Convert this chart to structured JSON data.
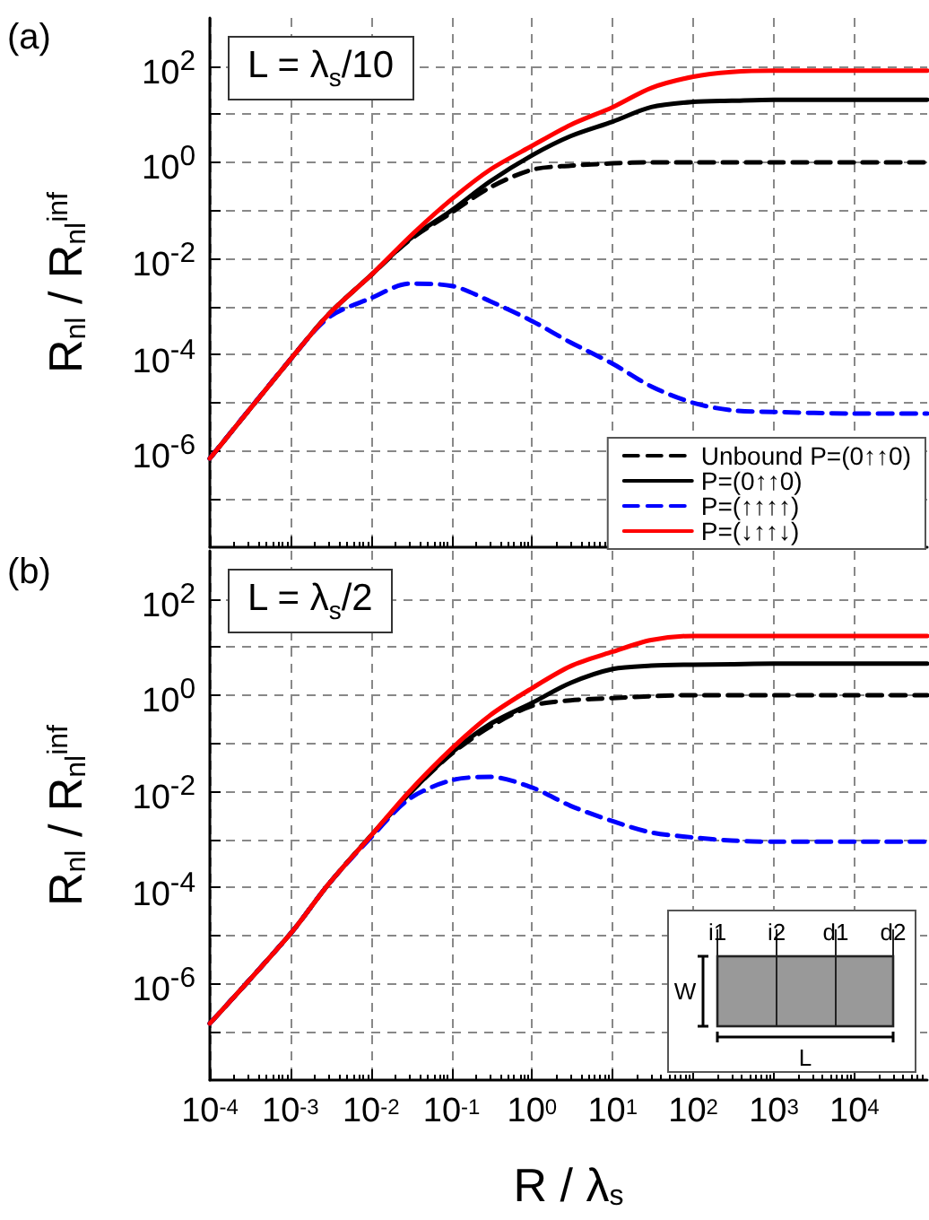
{
  "chart_data": [
    {
      "type": "line",
      "ylabel": "R$_{nl}$ / R$_{nl}$$^{inf}$",
      "annotations": [
        "(a)",
        "L = λ$_{s}$/10"
      ],
      "x": [
        0.0001,
        0.001,
        0.003,
        0.01,
        0.03,
        0.1,
        0.3,
        1,
        3,
        10,
        30,
        100,
        300,
        1000,
        10000,
        80000
      ],
      "series": [
        {
          "name": "Unbound P=(0↑↑0)",
          "color": "#000000",
          "line_style": "dashed",
          "values": [
            7e-07,
            8e-05,
            0.0007,
            0.0045,
            0.024,
            0.09,
            0.3,
            0.7,
            0.85,
            0.95,
            1,
            1,
            1,
            1,
            1,
            1
          ]
        },
        {
          "name": "P=(0↑↑0)",
          "color": "#000000",
          "line_style": "solid",
          "values": [
            7e-07,
            8e-05,
            0.0007,
            0.0045,
            0.025,
            0.1,
            0.4,
            1.4,
            3.5,
            7,
            14,
            18,
            19,
            20,
            20,
            20
          ]
        },
        {
          "name": "P=(↑↑↑↑)",
          "color": "#0000ff",
          "line_style": "dashed",
          "values": [
            7e-07,
            8e-05,
            0.0006,
            0.0015,
            0.003,
            0.0027,
            0.0013,
            0.0005,
            0.00018,
            6.5e-05,
            2.2e-05,
            1e-05,
            7e-06,
            6.5e-06,
            6e-06,
            6e-06
          ]
        },
        {
          "name": "P=(↓↑↑↓)",
          "color": "#ff0000",
          "line_style": "solid",
          "values": [
            7e-07,
            8e-05,
            0.0007,
            0.0045,
            0.028,
            0.17,
            0.7,
            2.2,
            6,
            14,
            35,
            60,
            75,
            80,
            80,
            80
          ]
        }
      ],
      "log": "xy",
      "grid": true,
      "legend": "bottom right",
      "tick_labels": "y",
      "xlim": [
        0.0001,
        80000
      ],
      "xticks": [
        {
          "value": 0.0001,
          "label": null
        },
        {
          "value": 0.001,
          "label": null
        },
        {
          "value": 0.01,
          "label": null
        },
        {
          "value": 0.1,
          "label": null
        },
        {
          "value": 1,
          "label": null
        },
        {
          "value": 10,
          "label": null
        },
        {
          "value": 100,
          "label": null
        },
        {
          "value": 1000,
          "label": null
        },
        {
          "value": 10000,
          "label": null
        }
      ],
      "ylim": [
        1e-08,
        1000
      ],
      "yticks": [
        {
          "value": 1e-07,
          "label": null
        },
        {
          "value": 1e-06,
          "label": "10$^{-6}$"
        },
        {
          "value": 1e-05,
          "label": null
        },
        {
          "value": 0.0001,
          "label": "10$^{-4}$"
        },
        {
          "value": 0.001,
          "label": null
        },
        {
          "value": 0.01,
          "label": "10$^{-2}$"
        },
        {
          "value": 0.1,
          "label": null
        },
        {
          "value": 1,
          "label": "10$^{0}$"
        },
        {
          "value": 10,
          "label": null
        },
        {
          "value": 100,
          "label": "10$^{2}$"
        }
      ]
    },
    {
      "type": "line",
      "xlabel": "R / λ$_{s}$",
      "ylabel": "R$_{nl}$ / R$_{nl}$$^{inf}$",
      "annotations": [
        "(b)",
        "L = λ$_{s}$/2",
        "i1",
        "i2",
        "d1",
        "d2",
        "W",
        "L"
      ],
      "x": [
        0.0001,
        0.001,
        0.003,
        0.01,
        0.03,
        0.1,
        0.3,
        1,
        3,
        10,
        30,
        100,
        300,
        1000,
        10000,
        80000
      ],
      "series": [
        {
          "color": "#000000",
          "line_style": "dashed",
          "values": [
            1.5e-07,
            1.1e-05,
            0.00012,
            0.0012,
            0.009,
            0.06,
            0.22,
            0.6,
            0.78,
            0.87,
            0.95,
            1,
            1,
            1,
            1,
            1
          ]
        },
        {
          "color": "#000000",
          "line_style": "solid",
          "values": [
            1.5e-07,
            1.1e-05,
            0.00012,
            0.0012,
            0.009,
            0.063,
            0.25,
            0.69,
            1.8,
            3.5,
            4.1,
            4.3,
            4.4,
            4.5,
            4.5,
            4.5
          ]
        },
        {
          "color": "#0000ff",
          "line_style": "dashed",
          "values": [
            1.5e-07,
            1.1e-05,
            0.00012,
            0.0011,
            0.007,
            0.017,
            0.02,
            0.012,
            0.005,
            0.0024,
            0.0014,
            0.0011,
            0.00095,
            0.0009,
            0.0009,
            0.0009
          ]
        },
        {
          "color": "#ff0000",
          "line_style": "solid",
          "values": [
            1.5e-07,
            1.1e-05,
            0.00012,
            0.0012,
            0.01,
            0.077,
            0.38,
            1.4,
            4,
            8,
            14,
            17,
            17,
            17,
            17,
            17
          ]
        }
      ],
      "log": "xy",
      "grid": true,
      "xlim": [
        0.0001,
        80000
      ],
      "xticks": [
        {
          "value": 0.0001,
          "label": "10$^{-4}$"
        },
        {
          "value": 0.001,
          "label": "10$^{-3}$"
        },
        {
          "value": 0.01,
          "label": "10$^{-2}$"
        },
        {
          "value": 0.1,
          "label": "10$^{-1}$"
        },
        {
          "value": 1,
          "label": "10$^{0}$"
        },
        {
          "value": 10,
          "label": "10$^{1}$"
        },
        {
          "value": 100,
          "label": "10$^{2}$"
        },
        {
          "value": 1000,
          "label": "10$^{3}$"
        },
        {
          "value": 10000,
          "label": "10$^{4}$"
        }
      ],
      "ylim": [
        1e-08,
        1000
      ],
      "yticks": [
        {
          "value": 1e-07,
          "label": null
        },
        {
          "value": 1e-06,
          "label": "10$^{-6}$"
        },
        {
          "value": 1e-05,
          "label": null
        },
        {
          "value": 0.0001,
          "label": "10$^{-4}$"
        },
        {
          "value": 0.001,
          "label": null
        },
        {
          "value": 0.01,
          "label": "10$^{-2}$"
        },
        {
          "value": 0.1,
          "label": null
        },
        {
          "value": 1,
          "label": "10$^{0}$"
        },
        {
          "value": 10,
          "label": null
        },
        {
          "value": 100,
          "label": "10$^{2}$"
        }
      ]
    }
  ]
}
